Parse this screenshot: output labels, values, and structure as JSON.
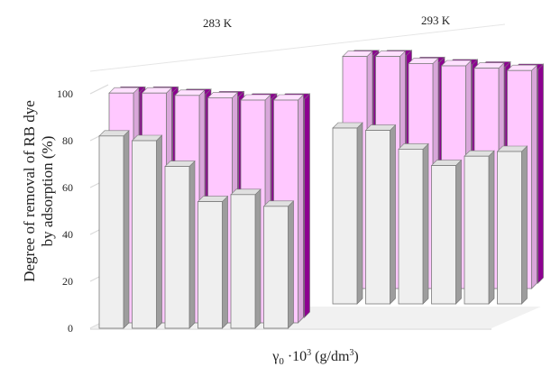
{
  "chart_data": {
    "type": "bar",
    "title": "",
    "ylabel_line1": "Degree of removal of RB dye",
    "ylabel_line2": "by adsorption  (%)",
    "xlabel": {
      "base": "γ",
      "sub": "0",
      "mid": " ·10",
      "sup": "3",
      "rest": " (g/dm",
      "sup2": "3",
      "end": ")"
    },
    "ylim": [
      0,
      100
    ],
    "yticks": [
      "0",
      "20",
      "40",
      "60",
      "80",
      "100"
    ],
    "grid": true,
    "colors": {
      "front_fill": "#efefef",
      "front_top": "#e0e0e0",
      "front_side": "#9d9d9d",
      "back_fill": "#ffc8ff",
      "back_top": "#ffe0ff",
      "back_side": "#8c0090",
      "floor": "#e8e8e8"
    },
    "panels": [
      {
        "title": "283 K",
        "series": [
          {
            "values": [
              82,
              80,
              69,
              54,
              57,
              52
            ]
          },
          {
            "values": [
              98,
              98,
              97,
              96,
              95,
              95
            ]
          }
        ]
      },
      {
        "title": "293 K",
        "series": [
          {
            "values": [
              75,
              74,
              66,
              59,
              63,
              65
            ]
          },
          {
            "values": [
              99,
              99,
              96,
              95,
              94,
              93
            ]
          }
        ]
      }
    ]
  }
}
